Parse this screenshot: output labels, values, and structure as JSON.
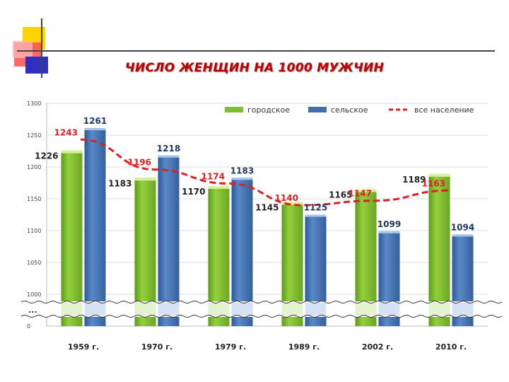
{
  "title": "ЧИСЛО ЖЕНЩИН НА 1000 МУЖЧИН",
  "colors": {
    "urban": "#7dbd2f",
    "rural": "#3f6fb0",
    "total_line": "#e02020",
    "urban_label": "#222222",
    "rural_label": "#1f3864",
    "total_label": "#e02020"
  },
  "chart_data": {
    "type": "bar",
    "title": "ЧИСЛО ЖЕНЩИН НА 1000 МУЖЧИН",
    "categories": [
      "1959 г.",
      "1970 г.",
      "1979 г.",
      "1989 г.",
      "2002 г.",
      "2010 г."
    ],
    "series": [
      {
        "name": "городское",
        "type": "bar",
        "values": [
          1226,
          1183,
          1170,
          1145,
          1165,
          1189
        ]
      },
      {
        "name": "сельское",
        "type": "bar",
        "values": [
          1261,
          1218,
          1183,
          1125,
          1099,
          1094
        ]
      },
      {
        "name": "все население",
        "type": "line",
        "style": "dashed",
        "values": [
          1243,
          1196,
          1174,
          1140,
          1147,
          1163
        ]
      }
    ],
    "y_ticks": [
      "1300",
      "1250",
      "1200",
      "1150",
      "1100",
      "1050",
      "1000",
      "0"
    ],
    "ylim": [
      1000,
      1300
    ],
    "axis_break": "...",
    "grid": true,
    "legend_position": "top-right"
  }
}
